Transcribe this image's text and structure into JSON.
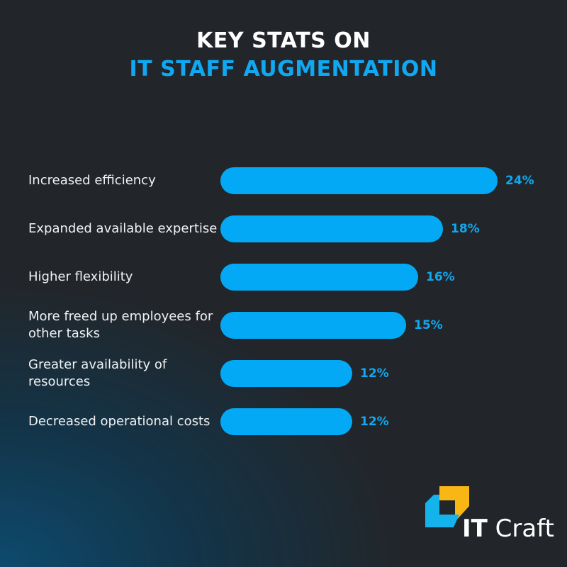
{
  "title_line1": "KEY STATS ON",
  "title_line2": "IT STAFF AUGMENTATION",
  "colors": {
    "bar": "#03a9f4",
    "accent": "#10a8f0"
  },
  "chart_data": {
    "type": "bar",
    "orientation": "horizontal",
    "title": "KEY STATS ON IT STAFF AUGMENTATION",
    "categories": [
      "Increased efficiency",
      "Expanded available expertise",
      "Higher flexibility",
      "More freed up employees for other tasks",
      "Greater availability of resources",
      "Decreased operational costs"
    ],
    "values": [
      24,
      18,
      16,
      15,
      12,
      12
    ],
    "labels": [
      "24%",
      "18%",
      "16%",
      "15%",
      "12%",
      "12%"
    ],
    "unit": "%",
    "grid": false
  },
  "logo": {
    "text_bold": "IT",
    "text_regular": "Craft"
  }
}
